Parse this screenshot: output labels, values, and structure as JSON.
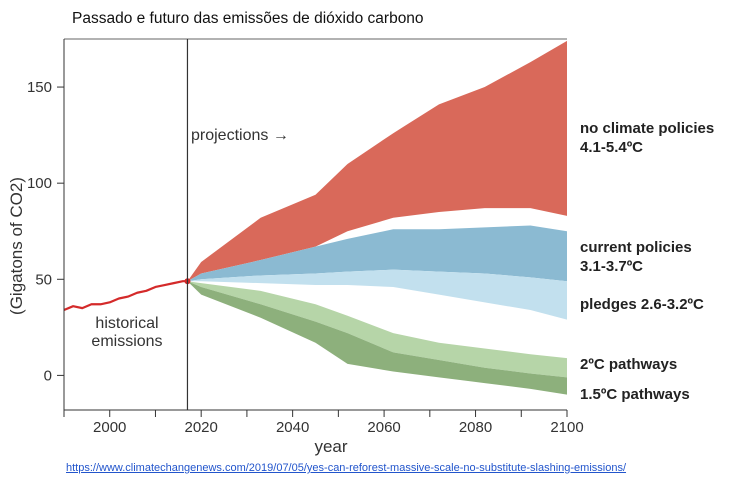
{
  "page": {
    "title": "Passado e futuro das emissões de dióxido carbono",
    "source_url": "https://www.climatechangenews.com/2019/07/05/yes-can-reforest-massive-scale-no-substitute-slashing-emissions/"
  },
  "chart_data": {
    "type": "area",
    "title": "Passado e futuro das emissões de dióxido carbono",
    "xlabel": "year",
    "ylabel": "(Gigatons of CO2)",
    "xlim": [
      1990,
      2100
    ],
    "ylim": [
      -18,
      175
    ],
    "x_ticks": [
      2000,
      2020,
      2040,
      2060,
      2080,
      2100
    ],
    "y_ticks": [
      0,
      50,
      100,
      150
    ],
    "grid": false,
    "divider_year": 2017,
    "annotations": {
      "projections": "projections →",
      "historical_line1": "historical",
      "historical_line2": "emissions"
    },
    "historical": {
      "label": "historical emissions",
      "color": "#d42a2a",
      "x": [
        1990,
        1992,
        1994,
        1996,
        1998,
        2000,
        2002,
        2004,
        2006,
        2008,
        2010,
        2012,
        2014,
        2016,
        2017
      ],
      "y": [
        34,
        36,
        35,
        37,
        37,
        38,
        40,
        41,
        43,
        44,
        46,
        47,
        48,
        49,
        49
      ]
    },
    "bands": [
      {
        "name": "no climate policies",
        "color": "#d9695a",
        "x": [
          2017,
          2020,
          2033,
          2045,
          2052,
          2062,
          2072,
          2082,
          2092,
          2100
        ],
        "upper": [
          49,
          59,
          82,
          94,
          110,
          126,
          141,
          150,
          163,
          174
        ],
        "lower": [
          49,
          53,
          60,
          67,
          75,
          82,
          85,
          87,
          87,
          83
        ]
      },
      {
        "name": "current policies",
        "color": "#8bbad2",
        "x": [
          2017,
          2020,
          2033,
          2045,
          2052,
          2062,
          2072,
          2082,
          2092,
          2100
        ],
        "upper": [
          49,
          53,
          60,
          67,
          71,
          76,
          76,
          77,
          78,
          75
        ],
        "lower": [
          49,
          50,
          52,
          53,
          54,
          55,
          54,
          53,
          51,
          49
        ]
      },
      {
        "name": "pledges",
        "color": "#c2e0ee",
        "x": [
          2017,
          2020,
          2033,
          2045,
          2052,
          2062,
          2072,
          2082,
          2092,
          2100
        ],
        "upper": [
          49,
          50,
          52,
          53,
          54,
          55,
          54,
          53,
          51,
          49
        ],
        "lower": [
          49,
          49,
          48,
          47,
          47,
          46,
          42,
          38,
          34,
          29
        ]
      },
      {
        "name": "2°C pathways",
        "color": "#b6d5a8",
        "x": [
          2017,
          2020,
          2033,
          2045,
          2052,
          2062,
          2072,
          2082,
          2092,
          2100
        ],
        "upper": [
          49,
          48,
          44,
          37,
          31,
          22,
          17,
          14,
          11,
          9
        ],
        "lower": [
          49,
          46,
          37,
          28,
          22,
          12,
          8,
          4,
          1,
          -1
        ]
      },
      {
        "name": "1.5°C pathways",
        "color": "#8db07c",
        "x": [
          2017,
          2020,
          2033,
          2045,
          2052,
          2062,
          2072,
          2082,
          2092,
          2100
        ],
        "upper": [
          49,
          46,
          37,
          28,
          22,
          12,
          8,
          4,
          1,
          -1
        ],
        "lower": [
          49,
          42,
          30,
          17,
          6,
          2,
          -1,
          -4,
          -7,
          -10
        ]
      }
    ],
    "legend": {
      "placement": "right",
      "entries": [
        {
          "name": "no climate policies",
          "range": "4.1-5.4ºC"
        },
        {
          "name": "current policies",
          "range": "3.1-3.7ºC"
        },
        {
          "name": "pledges 2.6-3.2ºC",
          "range": ""
        },
        {
          "name": "2ºC pathways",
          "range": ""
        },
        {
          "name": "1.5ºC pathways",
          "range": ""
        }
      ]
    }
  }
}
